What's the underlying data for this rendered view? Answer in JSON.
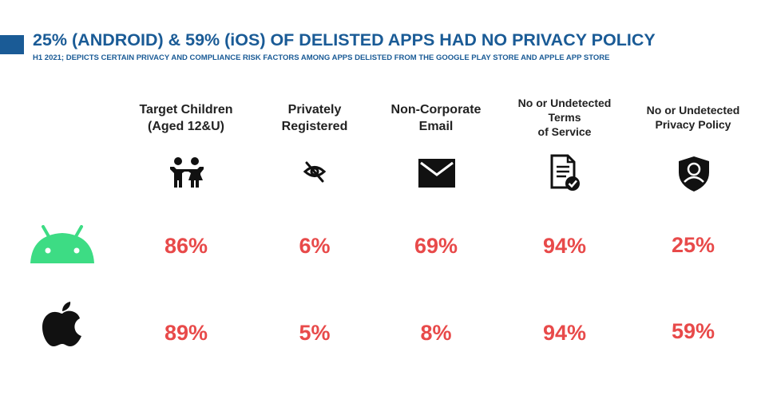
{
  "header": {
    "title": "25% (ANDROID) & 59% (iOS) OF DELISTED APPS HAD NO PRIVACY POLICY",
    "subtitle": "H1 2021; DEPICTS CERTAIN PRIVACY AND COMPLIANCE RISK FACTORS AMONG APPS DELISTED FROM THE GOOGLE PLAY STORE AND APPLE APP STORE"
  },
  "colors": {
    "brand": "#1a5b96",
    "value": "#e84a4a",
    "android": "#3ddc84",
    "text": "#222222"
  },
  "columns": [
    {
      "lines": [
        "Target Children",
        "(Aged 12&U)"
      ],
      "icon": "children-icon"
    },
    {
      "lines": [
        "Privately",
        "Registered"
      ],
      "icon": "hidden-eye-icon"
    },
    {
      "lines": [
        "Non-Corporate",
        "Email"
      ],
      "icon": "envelope-icon"
    },
    {
      "lines": [
        "No or Undetected",
        "Terms",
        "of Service"
      ],
      "icon": "document-check-icon"
    },
    {
      "lines": [
        "No or Undetected",
        "Privacy Policy"
      ],
      "icon": "shield-user-icon"
    }
  ],
  "rows": [
    {
      "platform_icon": "android-icon",
      "values": [
        "86%",
        "6%",
        "69%",
        "94%",
        "25%"
      ]
    },
    {
      "platform_icon": "apple-icon",
      "values": [
        "89%",
        "5%",
        "8%",
        "94%",
        "59%"
      ]
    }
  ],
  "chart_data": {
    "type": "table",
    "title": "25% (ANDROID) & 59% (iOS) OF DELISTED APPS HAD NO PRIVACY POLICY",
    "subtitle": "H1 2021; DEPICTS CERTAIN PRIVACY AND COMPLIANCE RISK FACTORS AMONG APPS DELISTED FROM THE GOOGLE PLAY STORE AND APPLE APP STORE",
    "columns": [
      "Target Children (Aged 12&U)",
      "Privately Registered",
      "Non-Corporate Email",
      "No or Undetected Terms of Service",
      "No or Undetected Privacy Policy"
    ],
    "series": [
      {
        "values": [
          86,
          6,
          69,
          94,
          25
        ]
      },
      {
        "values": [
          89,
          5,
          8,
          94,
          59
        ]
      }
    ],
    "unit": "%"
  }
}
